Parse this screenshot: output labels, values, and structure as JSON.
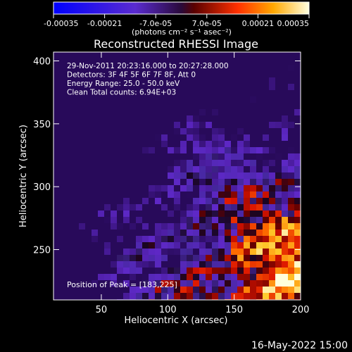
{
  "chart_data": {
    "type": "heatmap",
    "title": "Reconstructed RHESSI Image",
    "xlabel": "Heliocentric X (arcsec)",
    "ylabel": "Heliocentric Y (arcsec)",
    "xlim": [
      14,
      200
    ],
    "ylim": [
      210,
      407
    ],
    "xticks": [
      50,
      100,
      150,
      200
    ],
    "yticks": [
      250,
      300,
      350,
      400
    ],
    "colorbar": {
      "range": [
        -0.00035,
        0.00035
      ],
      "tick_labels": [
        "-0.00035",
        "-0.00021",
        "-7.0e-05",
        "7.0e-05",
        "0.00021",
        "0.00035"
      ],
      "tick_values": [
        -0.00035,
        -0.00021,
        -7e-05,
        7e-05,
        0.00021,
        0.00035
      ],
      "unit_label": "(photons cm⁻² s⁻¹ asec⁻²)"
    },
    "annotations": [
      "29-Nov-2011 20:23:16.000 to 20:27:28.000",
      "Detectors: 3F 4F 5F 6F 7F 8F, Att 0",
      "Energy Range: 25.0 - 50.0 keV",
      "Clean     Total counts: 6.94E+03"
    ],
    "peak_label": "Position of Peak = [183,225]",
    "peak": [
      183,
      225
    ],
    "grid": false,
    "legend": "colorbar-top"
  },
  "footer": {
    "date": "16-May-2022 15:00"
  }
}
